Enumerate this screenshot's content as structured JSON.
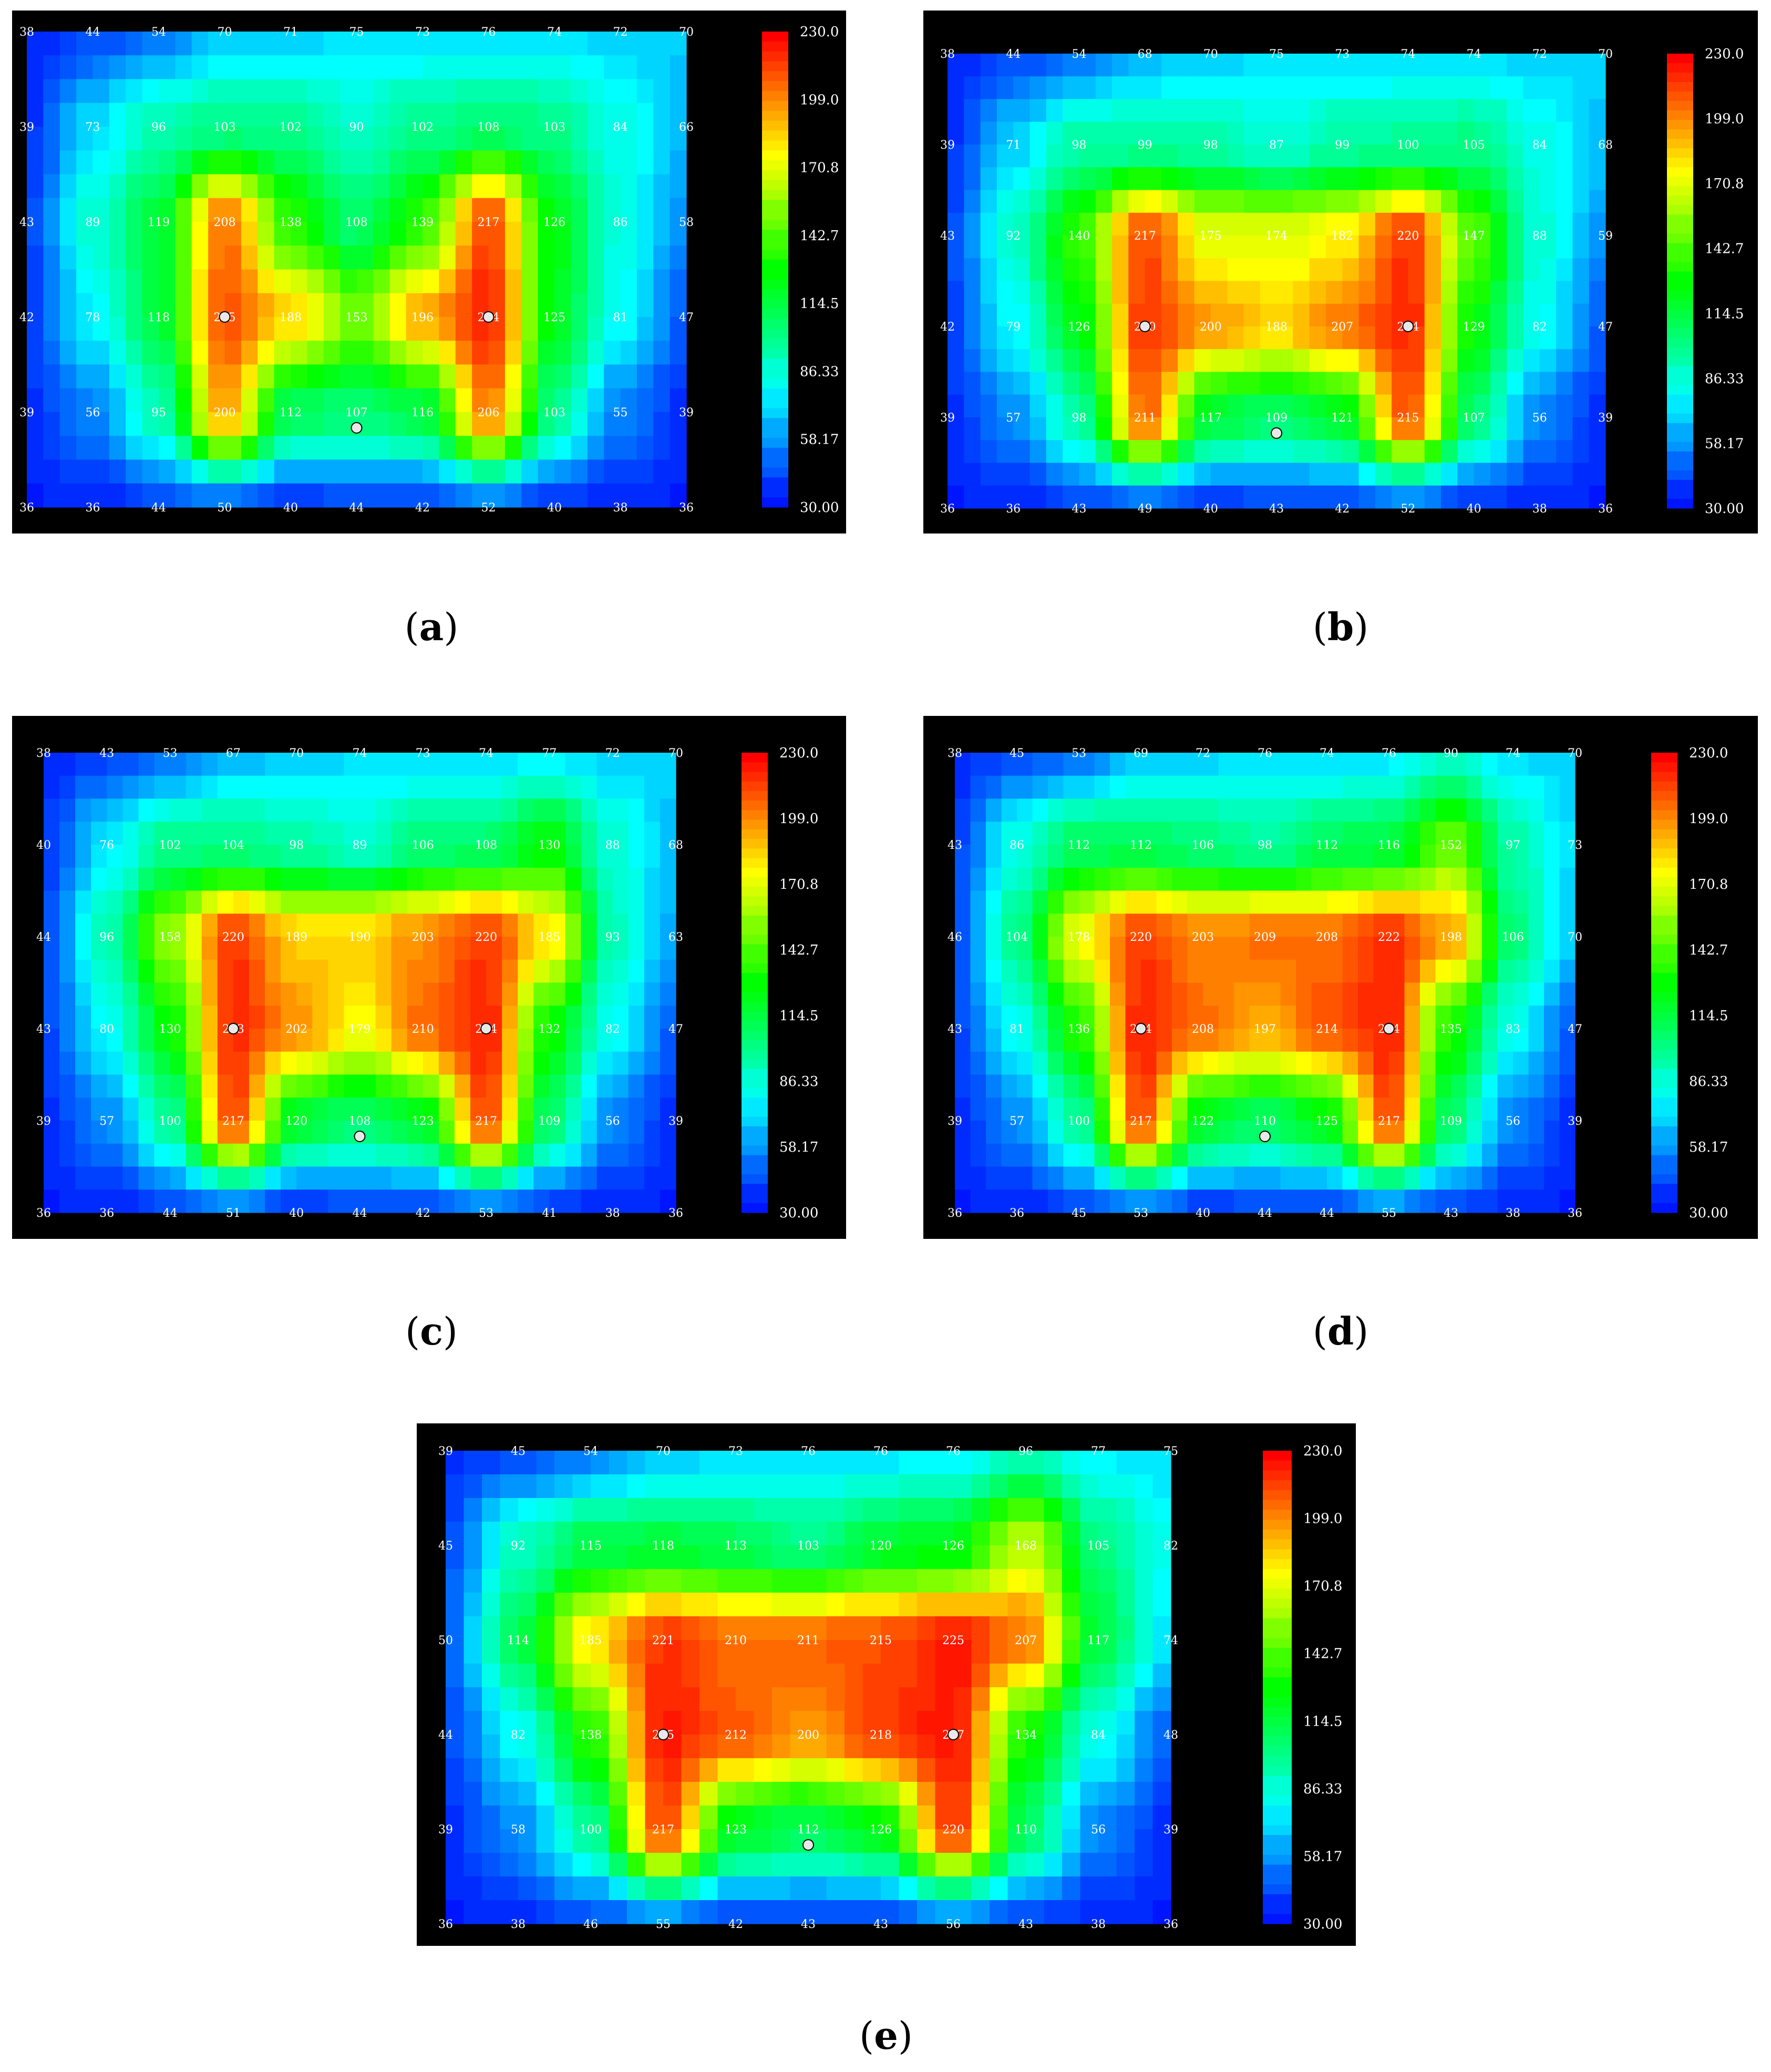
{
  "colorbar": {
    "ticks": [
      "230.0",
      "199.0",
      "170.8",
      "142.7",
      "114.5",
      "86.33",
      "58.17",
      "30.00"
    ],
    "min": 30,
    "max": 230,
    "colormap": [
      "#0000ff",
      "#00ffff",
      "#00ff00",
      "#ffff00",
      "#ff0000"
    ]
  },
  "captions": {
    "a": "a",
    "b": "b",
    "c": "c",
    "d": "d",
    "e": "e"
  },
  "chart_data": [
    {
      "id": "a",
      "type": "heatmap",
      "rows": [
        [
          "38",
          "44",
          "54",
          "70",
          "71",
          "75",
          "73",
          "76",
          "74",
          "72",
          "70"
        ],
        [
          "39",
          "73",
          "96",
          "103",
          "102",
          "90",
          "102",
          "108",
          "103",
          "84",
          "66"
        ],
        [
          "43",
          "89",
          "119",
          "208",
          "138",
          "108",
          "139",
          "217",
          "126",
          "86",
          "58"
        ],
        [
          "42",
          "78",
          "118",
          "215",
          "188",
          "153",
          "196",
          "224",
          "125",
          "81",
          "47"
        ],
        [
          "39",
          "56",
          "95",
          "200",
          "112",
          "107",
          "116",
          "206",
          "103",
          "55",
          "39"
        ],
        [
          "36",
          "36",
          "44",
          "50",
          "40",
          "44",
          "42",
          "52",
          "40",
          "38",
          "36"
        ]
      ],
      "markers": [
        [
          3,
          3
        ],
        [
          3,
          7
        ],
        [
          4,
          5
        ]
      ]
    },
    {
      "id": "b",
      "type": "heatmap",
      "rows": [
        [
          "38",
          "44",
          "54",
          "68",
          "70",
          "75",
          "73",
          "74",
          "74",
          "72",
          "70"
        ],
        [
          "39",
          "71",
          "98",
          "99",
          "98",
          "87",
          "99",
          "100",
          "105",
          "84",
          "68"
        ],
        [
          "43",
          "92",
          "140",
          "217",
          "175",
          "174",
          "182",
          "220",
          "147",
          "88",
          "59"
        ],
        [
          "42",
          "79",
          "126",
          "220",
          "200",
          "188",
          "207",
          "224",
          "129",
          "82",
          "47"
        ],
        [
          "39",
          "57",
          "98",
          "211",
          "117",
          "109",
          "121",
          "215",
          "107",
          "56",
          "39"
        ],
        [
          "36",
          "36",
          "43",
          "49",
          "40",
          "43",
          "42",
          "52",
          "40",
          "38",
          "36"
        ]
      ],
      "markers": [
        [
          3,
          3
        ],
        [
          3,
          7
        ],
        [
          4,
          5
        ]
      ]
    },
    {
      "id": "c",
      "type": "heatmap",
      "rows": [
        [
          "38",
          "43",
          "53",
          "67",
          "70",
          "74",
          "73",
          "74",
          "77",
          "72",
          "70"
        ],
        [
          "40",
          "76",
          "102",
          "104",
          "98",
          "89",
          "106",
          "108",
          "130",
          "88",
          "68"
        ],
        [
          "44",
          "96",
          "158",
          "220",
          "189",
          "190",
          "203",
          "220",
          "185",
          "93",
          "63"
        ],
        [
          "43",
          "80",
          "130",
          "223",
          "202",
          "179",
          "210",
          "224",
          "132",
          "82",
          "47"
        ],
        [
          "39",
          "57",
          "100",
          "217",
          "120",
          "108",
          "123",
          "217",
          "109",
          "56",
          "39"
        ],
        [
          "36",
          "36",
          "44",
          "51",
          "40",
          "44",
          "42",
          "53",
          "41",
          "38",
          "36"
        ]
      ],
      "markers": [
        [
          3,
          3
        ],
        [
          3,
          7
        ],
        [
          4,
          5
        ]
      ]
    },
    {
      "id": "d",
      "type": "heatmap",
      "rows": [
        [
          "38",
          "45",
          "53",
          "69",
          "72",
          "76",
          "74",
          "76",
          "90",
          "74",
          "70"
        ],
        [
          "43",
          "86",
          "112",
          "112",
          "106",
          "98",
          "112",
          "116",
          "152",
          "97",
          "73"
        ],
        [
          "46",
          "104",
          "178",
          "220",
          "203",
          "209",
          "208",
          "222",
          "198",
          "106",
          "70"
        ],
        [
          "43",
          "81",
          "136",
          "224",
          "208",
          "197",
          "214",
          "224",
          "135",
          "83",
          "47"
        ],
        [
          "39",
          "57",
          "100",
          "217",
          "122",
          "110",
          "125",
          "217",
          "109",
          "56",
          "39"
        ],
        [
          "36",
          "36",
          "45",
          "53",
          "40",
          "44",
          "44",
          "55",
          "43",
          "38",
          "36"
        ]
      ],
      "markers": [
        [
          3,
          3
        ],
        [
          3,
          7
        ],
        [
          4,
          5
        ]
      ]
    },
    {
      "id": "e",
      "type": "heatmap",
      "rows": [
        [
          "39",
          "45",
          "54",
          "70",
          "73",
          "76",
          "76",
          "76",
          "96",
          "77",
          "75"
        ],
        [
          "45",
          "92",
          "115",
          "118",
          "113",
          "103",
          "120",
          "126",
          "168",
          "105",
          "82"
        ],
        [
          "50",
          "114",
          "185",
          "221",
          "210",
          "211",
          "215",
          "225",
          "207",
          "117",
          "74"
        ],
        [
          "44",
          "82",
          "138",
          "225",
          "212",
          "200",
          "218",
          "227",
          "134",
          "84",
          "48"
        ],
        [
          "39",
          "58",
          "100",
          "217",
          "123",
          "112",
          "126",
          "220",
          "110",
          "56",
          "39"
        ],
        [
          "36",
          "38",
          "46",
          "55",
          "42",
          "43",
          "43",
          "56",
          "43",
          "38",
          "36"
        ]
      ],
      "markers": [
        [
          3,
          3
        ],
        [
          3,
          7
        ],
        [
          4,
          5
        ]
      ]
    }
  ]
}
